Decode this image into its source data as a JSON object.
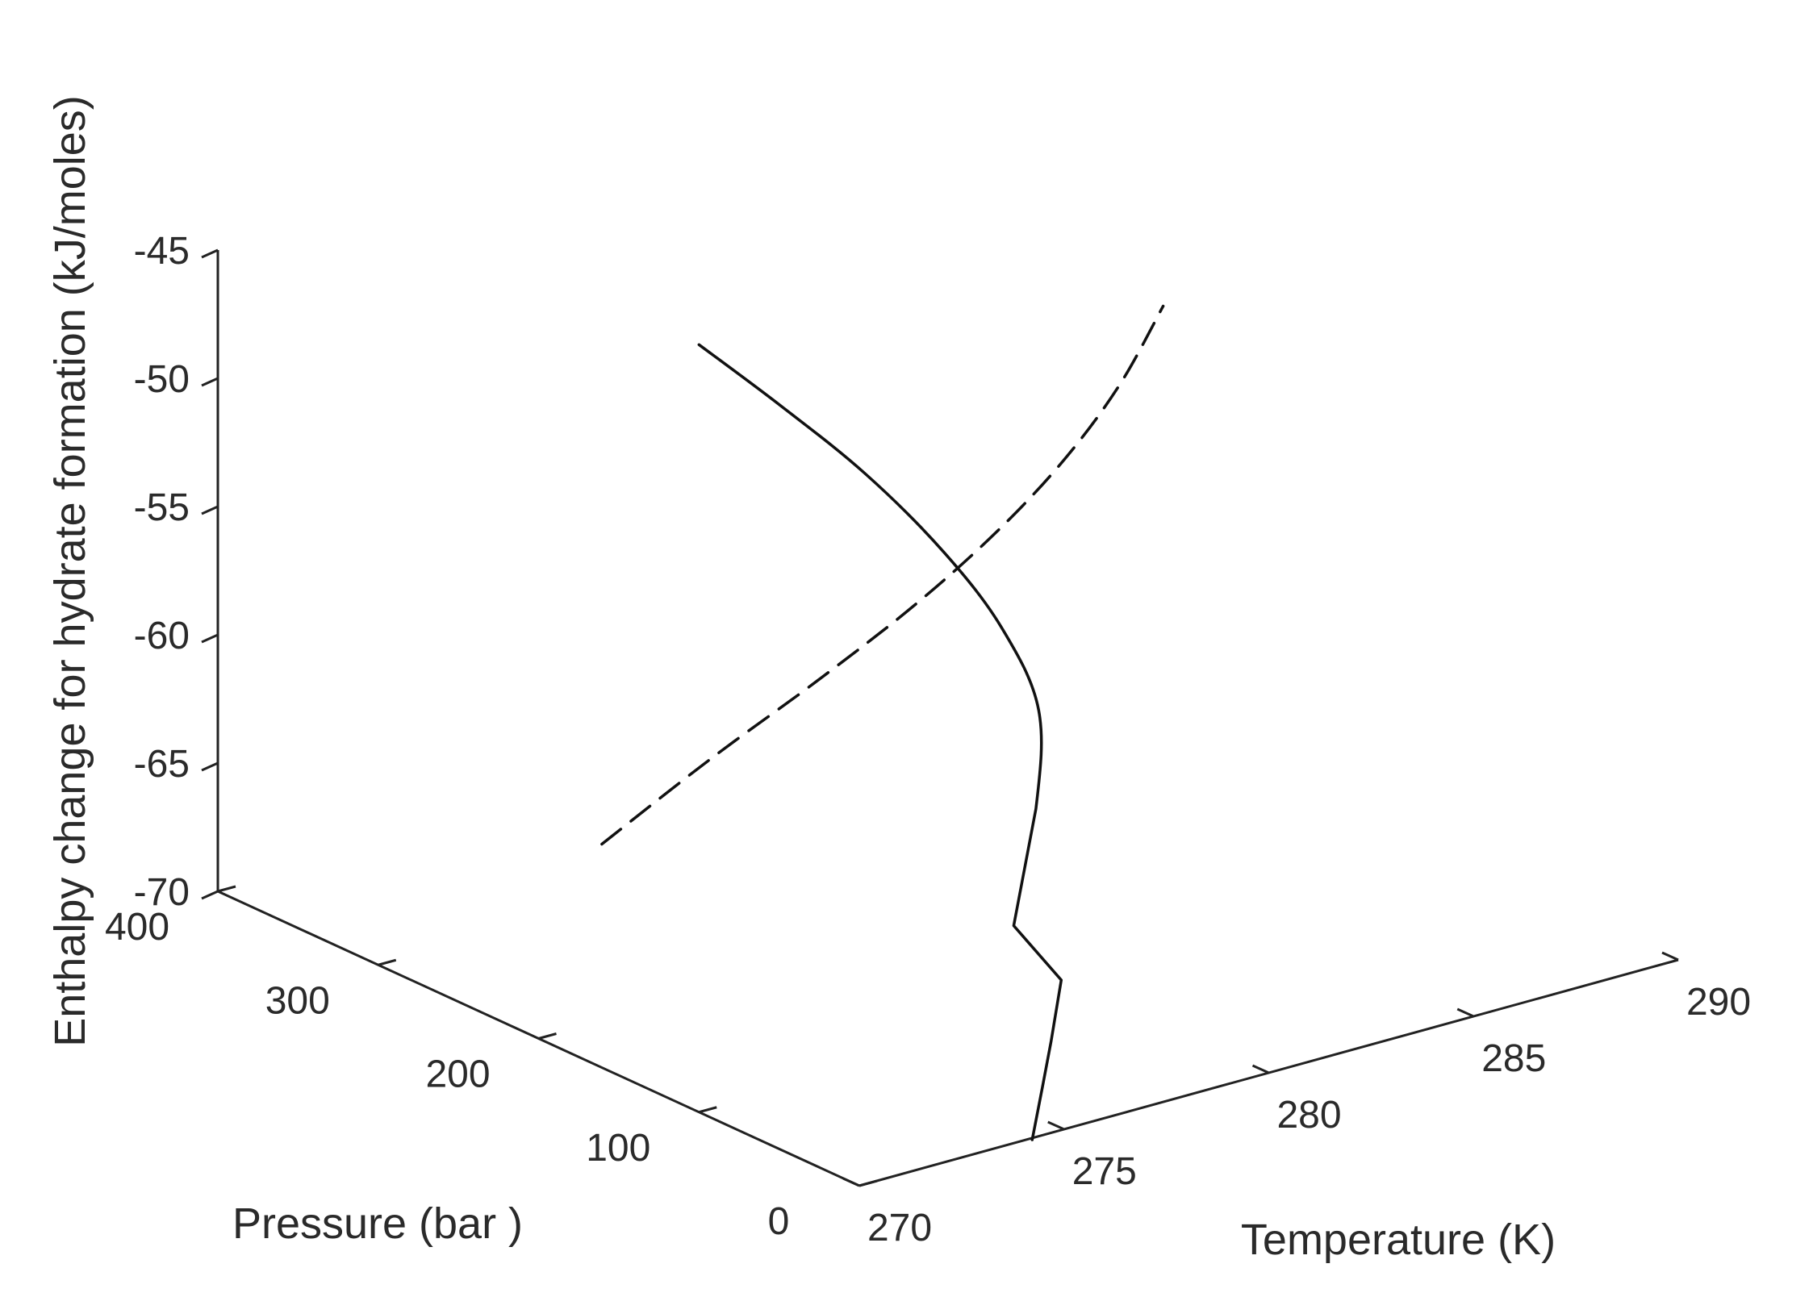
{
  "chart_data": {
    "type": "line3d",
    "xlabel": "Temperature (K)",
    "ylabel": "Pressure (bar  )",
    "zlabel": "Enthalpy change for hydrate formation (kJ/moles)",
    "xlim": [
      270,
      290
    ],
    "ylim": [
      0,
      400
    ],
    "zlim": [
      -70,
      -45
    ],
    "xticks": [
      "270",
      "275",
      "280",
      "285",
      "290"
    ],
    "yticks": [
      "0",
      "100",
      "200",
      "300",
      "400"
    ],
    "zticks": [
      "-70",
      "-65",
      "-60",
      "-55",
      "-50",
      "-45"
    ],
    "grid": false,
    "series": [
      {
        "style": "solid",
        "color": "#111111",
        "points": [
          {
            "x": 276.86,
            "y": 67.36,
            "z": -73.16
          },
          {
            "x": 278.51,
            "y": 97.73,
            "z": -70.94
          },
          {
            "x": 279.49,
            "y": 116.41,
            "z": -69.5
          },
          {
            "x": 279.37,
            "y": 142.95,
            "z": -68.09
          },
          {
            "x": 280.62,
            "y": 161.03,
            "z": -64.6
          },
          {
            "x": 281.33,
            "y": 177.46,
            "z": -61.54
          },
          {
            "x": 281.1,
            "y": 194.63,
            "z": -58.72
          },
          {
            "x": 280.46,
            "y": 214.29,
            "z": -56.06
          },
          {
            "x": 279.5,
            "y": 238.73,
            "z": -53.28
          },
          {
            "x": 278.38,
            "y": 262.95,
            "z": -50.83
          },
          {
            "x": 277.29,
            "y": 286.13,
            "z": -48.63
          }
        ]
      },
      {
        "style": "dashed",
        "color": "#111111",
        "points": [
          {
            "x": 273.76,
            "y": 256.54,
            "z": -65.7
          },
          {
            "x": 275.96,
            "y": 245.54,
            "z": -63.06
          },
          {
            "x": 278.14,
            "y": 233.86,
            "z": -60.6
          },
          {
            "x": 280.02,
            "y": 221.51,
            "z": -58.14
          },
          {
            "x": 281.52,
            "y": 209.06,
            "z": -55.61
          },
          {
            "x": 282.69,
            "y": 196.62,
            "z": -52.95
          },
          {
            "x": 283.58,
            "y": 184.77,
            "z": -50.09
          },
          {
            "x": 284.21,
            "y": 173.38,
            "z": -46.94
          }
        ]
      }
    ]
  }
}
